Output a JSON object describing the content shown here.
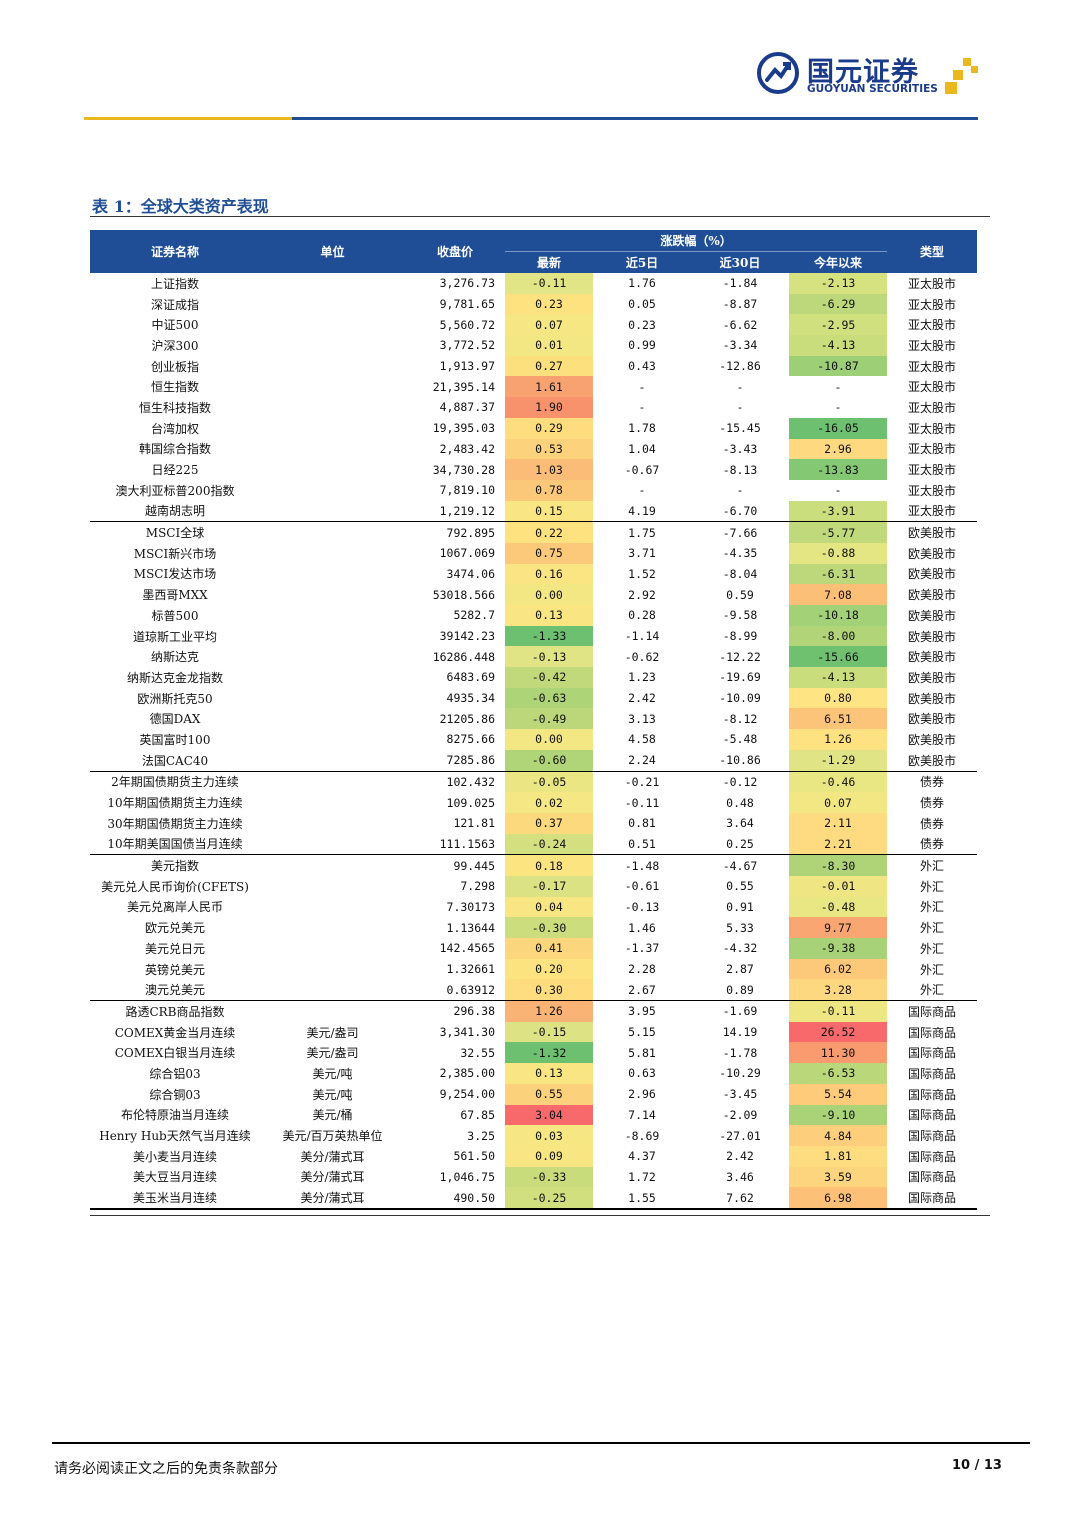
{
  "header": {
    "logo_cn": "国元证券",
    "logo_en": "GUOYUAN SECURITIES"
  },
  "table_title": "表 1：全球大类资产表现",
  "columns": {
    "name": "证券名称",
    "unit": "单位",
    "close": "收盘价",
    "change_group": "涨跌幅（%）",
    "latest": "最新",
    "d5": "近5日",
    "d30": "近30日",
    "ytd": "今年以来",
    "type": "类型"
  },
  "colors": {
    "header_bg": "#1f4e96",
    "gold": "#e8b81c"
  },
  "rows": [
    {
      "name": "上证指数",
      "unit": "",
      "close": "3,276.73",
      "latest": "-0.11",
      "d5": "1.76",
      "d30": "-1.84",
      "ytd": "-2.13",
      "type": "亚太股市",
      "lc": "#e2e586",
      "yc": "#d6e27f"
    },
    {
      "name": "深证成指",
      "unit": "",
      "close": "9,781.65",
      "latest": "0.23",
      "d5": "0.05",
      "d30": "-8.87",
      "ytd": "-6.29",
      "type": "亚太股市",
      "lc": "#fde27f",
      "yc": "#bcd87a"
    },
    {
      "name": "中证500",
      "unit": "",
      "close": "5,560.72",
      "latest": "0.07",
      "d5": "0.23",
      "d30": "-6.62",
      "ytd": "-2.95",
      "type": "亚太股市",
      "lc": "#f6e783",
      "yc": "#d1e07e"
    },
    {
      "name": "沪深300",
      "unit": "",
      "close": "3,772.52",
      "latest": "0.01",
      "d5": "0.99",
      "d30": "-3.34",
      "ytd": "-4.13",
      "type": "亚太股市",
      "lc": "#f3e783",
      "yc": "#c9dd7c"
    },
    {
      "name": "创业板指",
      "unit": "",
      "close": "1,913.97",
      "latest": "0.27",
      "d5": "0.43",
      "d30": "-12.86",
      "ytd": "-10.87",
      "type": "亚太股市",
      "lc": "#fde07e",
      "yc": "#9dcf76"
    },
    {
      "name": "恒生指数",
      "unit": "",
      "close": "21,395.14",
      "latest": "1.61",
      "d5": "-",
      "d30": "-",
      "ytd": "-",
      "type": "亚太股市",
      "lc": "#f8a271",
      "yc": "#ffffff"
    },
    {
      "name": "恒生科技指数",
      "unit": "",
      "close": "4,887.37",
      "latest": "1.90",
      "d5": "-",
      "d30": "-",
      "ytd": "-",
      "type": "亚太股市",
      "lc": "#f8926c",
      "yc": "#ffffff"
    },
    {
      "name": "台湾加权",
      "unit": "",
      "close": "19,395.03",
      "latest": "0.29",
      "d5": "1.78",
      "d30": "-15.45",
      "ytd": "-16.05",
      "type": "亚太股市",
      "lc": "#fddd7e",
      "yc": "#6cc070"
    },
    {
      "name": "韩国综合指数",
      "unit": "",
      "close": "2,483.42",
      "latest": "0.53",
      "d5": "1.04",
      "d30": "-3.43",
      "ytd": "2.96",
      "type": "亚太股市",
      "lc": "#fcd27c",
      "yc": "#fed980"
    },
    {
      "name": "日经225",
      "unit": "",
      "close": "34,730.28",
      "latest": "1.03",
      "d5": "-0.67",
      "d30": "-8.13",
      "ytd": "-13.83",
      "type": "亚太股市",
      "lc": "#fabc77",
      "yc": "#84c873"
    },
    {
      "name": "澳大利亚标普200指数",
      "unit": "",
      "close": "7,819.10",
      "latest": "0.78",
      "d5": "-",
      "d30": "-",
      "ytd": "-",
      "type": "亚太股市",
      "lc": "#fbc879",
      "yc": "#ffffff"
    },
    {
      "name": "越南胡志明",
      "unit": "",
      "close": "1,219.12",
      "latest": "0.15",
      "d5": "4.19",
      "d30": "-6.70",
      "ytd": "-3.91",
      "type": "亚太股市",
      "lc": "#fae583",
      "yc": "#cbde7d"
    },
    {
      "name": "MSCI全球",
      "unit": "",
      "close": "792.895",
      "latest": "0.22",
      "d5": "1.75",
      "d30": "-7.66",
      "ytd": "-5.77",
      "type": "欧美股市",
      "lc": "#fde27f",
      "yc": "#c0d97b",
      "sep": true
    },
    {
      "name": "MSCI新兴市场",
      "unit": "",
      "close": "1067.069",
      "latest": "0.75",
      "d5": "3.71",
      "d30": "-4.35",
      "ytd": "-0.88",
      "type": "欧美股市",
      "lc": "#fbc979",
      "yc": "#e4e583"
    },
    {
      "name": "MSCI发达市场",
      "unit": "",
      "close": "3474.06",
      "latest": "0.16",
      "d5": "1.52",
      "d30": "-8.04",
      "ytd": "-6.31",
      "type": "欧美股市",
      "lc": "#fbe582",
      "yc": "#bcd87a"
    },
    {
      "name": "墨西哥MXX",
      "unit": "",
      "close": "53018.566",
      "latest": "0.00",
      "d5": "2.92",
      "d30": "0.59",
      "ytd": "7.08",
      "type": "欧美股市",
      "lc": "#f2e783",
      "yc": "#fcbf77"
    },
    {
      "name": "标普500",
      "unit": "",
      "close": "5282.7",
      "latest": "0.13",
      "d5": "0.28",
      "d30": "-9.58",
      "ytd": "-10.18",
      "type": "欧美股市",
      "lc": "#f9e682",
      "yc": "#a3d177"
    },
    {
      "name": "道琼斯工业平均",
      "unit": "",
      "close": "39142.23",
      "latest": "-1.33",
      "d5": "-1.14",
      "d30": "-8.99",
      "ytd": "-8.00",
      "type": "欧美股市",
      "lc": "#6cc070",
      "yc": "#b1d478"
    },
    {
      "name": "纳斯达克",
      "unit": "",
      "close": "16286.448",
      "latest": "-0.13",
      "d5": "-0.62",
      "d30": "-12.22",
      "ytd": "-15.66",
      "type": "欧美股市",
      "lc": "#e0e485",
      "yc": "#6fc170"
    },
    {
      "name": "纳斯达克金龙指数",
      "unit": "",
      "close": "6483.69",
      "latest": "-0.42",
      "d5": "1.23",
      "d30": "-19.69",
      "ytd": "-4.13",
      "type": "欧美股市",
      "lc": "#c2d97b",
      "yc": "#c9dd7c"
    },
    {
      "name": "欧洲斯托克50",
      "unit": "",
      "close": "4935.34",
      "latest": "-0.63",
      "d5": "2.42",
      "d30": "-10.09",
      "ytd": "0.80",
      "type": "欧美股市",
      "lc": "#aed478",
      "yc": "#fee482"
    },
    {
      "name": "德国DAX",
      "unit": "",
      "close": "21205.86",
      "latest": "-0.49",
      "d5": "3.13",
      "d30": "-8.12",
      "ytd": "6.51",
      "type": "欧美股市",
      "lc": "#bbd77a",
      "yc": "#fcc478"
    },
    {
      "name": "英国富时100",
      "unit": "",
      "close": "8275.66",
      "latest": "0.00",
      "d5": "4.58",
      "d30": "-5.48",
      "ytd": "1.26",
      "type": "欧美股市",
      "lc": "#f2e783",
      "yc": "#fee181"
    },
    {
      "name": "法国CAC40",
      "unit": "",
      "close": "7285.86",
      "latest": "-0.60",
      "d5": "2.24",
      "d30": "-10.86",
      "ytd": "-1.29",
      "type": "欧美股市",
      "lc": "#b0d478",
      "yc": "#e1e484"
    },
    {
      "name": "2年期国债期货主力连续",
      "unit": "",
      "close": "102.432",
      "latest": "-0.05",
      "d5": "-0.21",
      "d30": "-0.12",
      "ytd": "-0.46",
      "type": "债券",
      "lc": "#eae684",
      "yc": "#e9e684",
      "sep": true
    },
    {
      "name": "10年期国债期货主力连续",
      "unit": "",
      "close": "109.025",
      "latest": "0.02",
      "d5": "-0.11",
      "d30": "0.48",
      "ytd": "0.07",
      "type": "债券",
      "lc": "#f5e783",
      "yc": "#f2e783"
    },
    {
      "name": "30年期国债期货主力连续",
      "unit": "",
      "close": "121.81",
      "latest": "0.37",
      "d5": "0.81",
      "d30": "3.64",
      "ytd": "2.11",
      "type": "债券",
      "lc": "#fcd97d",
      "yc": "#feda80"
    },
    {
      "name": "10年期美国国债当月连续",
      "unit": "",
      "close": "111.1563",
      "latest": "-0.24",
      "d5": "0.51",
      "d30": "0.25",
      "ytd": "2.21",
      "type": "债券",
      "lc": "#d4e07f",
      "yc": "#feda80"
    },
    {
      "name": "美元指数",
      "unit": "",
      "close": "99.445",
      "latest": "0.18",
      "d5": "-1.48",
      "d30": "-4.67",
      "ytd": "-8.30",
      "type": "外汇",
      "lc": "#fce481",
      "yc": "#afd478",
      "sep": true
    },
    {
      "name": "美元兑人民币询价(CFETS)",
      "unit": "",
      "close": "7.298",
      "latest": "-0.17",
      "d5": "-0.61",
      "d30": "0.55",
      "ytd": "-0.01",
      "type": "外汇",
      "lc": "#dbe283",
      "yc": "#efe683"
    },
    {
      "name": "美元兑离岸人民币",
      "unit": "",
      "close": "7.30173",
      "latest": "0.04",
      "d5": "-0.13",
      "d30": "0.91",
      "ytd": "-0.48",
      "type": "外汇",
      "lc": "#f8e682",
      "yc": "#e9e684"
    },
    {
      "name": "欧元兑美元",
      "unit": "",
      "close": "1.13644",
      "latest": "-0.30",
      "d5": "1.46",
      "d30": "5.33",
      "ytd": "9.77",
      "type": "外汇",
      "lc": "#ccdd7d",
      "yc": "#f9a672"
    },
    {
      "name": "美元兑日元",
      "unit": "",
      "close": "142.4565",
      "latest": "0.41",
      "d5": "-1.37",
      "d30": "-4.32",
      "ytd": "-9.38",
      "type": "外汇",
      "lc": "#fcd67d",
      "yc": "#a7d277"
    },
    {
      "name": "英镑兑美元",
      "unit": "",
      "close": "1.32661",
      "latest": "0.20",
      "d5": "2.28",
      "d30": "2.87",
      "ytd": "6.02",
      "type": "外汇",
      "lc": "#fde380",
      "yc": "#fcc879"
    },
    {
      "name": "澳元兑美元",
      "unit": "",
      "close": "0.63912",
      "latest": "0.30",
      "d5": "2.67",
      "d30": "0.89",
      "ytd": "3.28",
      "type": "外汇",
      "lc": "#fddd7e",
      "yc": "#fed880"
    },
    {
      "name": "路透CRB商品指数",
      "unit": "",
      "close": "296.38",
      "latest": "1.26",
      "d5": "3.95",
      "d30": "-1.69",
      "ytd": "-0.11",
      "type": "国际商品",
      "lc": "#f9b374",
      "yc": "#eee683",
      "sep": true
    },
    {
      "name": "COMEX黄金当月连续",
      "unit": "美元/盎司",
      "close": "3,341.30",
      "latest": "-0.15",
      "d5": "5.15",
      "d30": "14.19",
      "ytd": "26.52",
      "type": "国际商品",
      "lc": "#dde384",
      "yc": "#f8696b"
    },
    {
      "name": "COMEX白银当月连续",
      "unit": "美元/盎司",
      "close": "32.55",
      "latest": "-1.32",
      "d5": "5.81",
      "d30": "-1.78",
      "ytd": "11.30",
      "type": "国际商品",
      "lc": "#6dc070",
      "yc": "#f99b6f"
    },
    {
      "name": "综合铝03",
      "unit": "美元/吨",
      "close": "2,385.00",
      "latest": "0.13",
      "d5": "0.63",
      "d30": "-10.29",
      "ytd": "-6.53",
      "type": "国际商品",
      "lc": "#f9e682",
      "yc": "#bad77a"
    },
    {
      "name": "综合铜03",
      "unit": "美元/吨",
      "close": "9,254.00",
      "latest": "0.55",
      "d5": "2.96",
      "d30": "-3.45",
      "ytd": "5.54",
      "type": "国际商品",
      "lc": "#fcd17c",
      "yc": "#fdcb7a"
    },
    {
      "name": "布伦特原油当月连续",
      "unit": "美元/桶",
      "close": "67.85",
      "latest": "3.04",
      "d5": "7.14",
      "d30": "-2.09",
      "ytd": "-9.10",
      "type": "国际商品",
      "lc": "#f8696b",
      "yc": "#aad377"
    },
    {
      "name": "Henry Hub天然气当月连续",
      "unit": "美元/百万英热单位",
      "close": "3.25",
      "latest": "0.03",
      "d5": "-8.69",
      "d30": "-27.01",
      "ytd": "4.84",
      "type": "国际商品",
      "lc": "#f6e783",
      "yc": "#fdce7b"
    },
    {
      "name": "美小麦当月连续",
      "unit": "美分/蒲式耳",
      "close": "561.50",
      "latest": "0.09",
      "d5": "4.37",
      "d30": "2.42",
      "ytd": "1.81",
      "type": "国际商品",
      "lc": "#f8e682",
      "yc": "#fedd81"
    },
    {
      "name": "美大豆当月连续",
      "unit": "美分/蒲式耳",
      "close": "1,046.75",
      "latest": "-0.33",
      "d5": "1.72",
      "d30": "3.46",
      "ytd": "3.59",
      "type": "国际商品",
      "lc": "#c9dc7c",
      "yc": "#fed57f"
    },
    {
      "name": "美玉米当月连续",
      "unit": "美分/蒲式耳",
      "close": "490.50",
      "latest": "-0.25",
      "d5": "1.55",
      "d30": "7.62",
      "ytd": "6.98",
      "type": "国际商品",
      "lc": "#d1df7e",
      "yc": "#fcc077"
    }
  ],
  "footer": {
    "disclaimer": "请务必阅读正文之后的免责条款部分",
    "page": "10 / 13"
  }
}
